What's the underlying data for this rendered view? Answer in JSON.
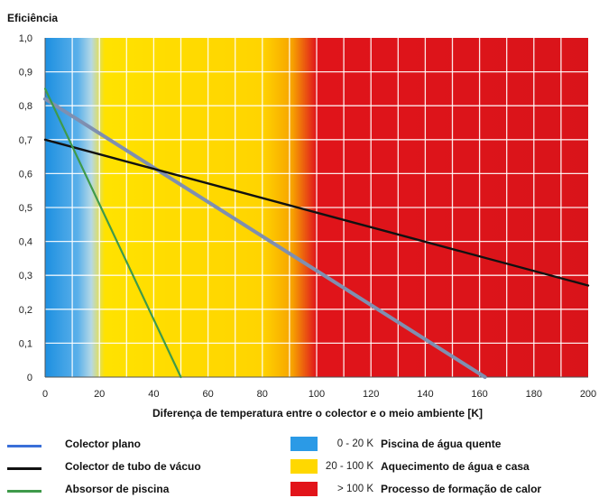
{
  "chart_data": {
    "type": "line",
    "title": "",
    "ylabel": "Eficiência",
    "xlabel": "Diferença de temperatura entre o colector e o meio ambiente [K]",
    "xlim": [
      0,
      200
    ],
    "ylim": [
      0,
      1.0
    ],
    "x_ticks": [
      "0",
      "20",
      "40",
      "60",
      "80",
      "100",
      "120",
      "140",
      "160",
      "180",
      "200"
    ],
    "y_ticks": [
      "0",
      "0,1",
      "0,2",
      "0,3",
      "0,4",
      "0,5",
      "0,6",
      "0,7",
      "0,8",
      "0,9",
      "1,0"
    ],
    "grid": true,
    "series": [
      {
        "name": "Colector plano",
        "color": "#7f8fb0",
        "x": [
          0,
          162
        ],
        "y": [
          0.82,
          0.0
        ]
      },
      {
        "name": "Colector de tubo de vácuo",
        "color": "#111111",
        "x": [
          0,
          200
        ],
        "y": [
          0.7,
          0.27
        ]
      },
      {
        "name": "Absorsor de piscina",
        "color": "#3f9a4a",
        "x": [
          0,
          50
        ],
        "y": [
          0.85,
          0.0
        ]
      }
    ],
    "zones": [
      {
        "range": "0 - 20 K",
        "label": "Piscina de água quente",
        "color": "#2b9ae6",
        "from": 0,
        "to": 20
      },
      {
        "range": "20 - 100 K",
        "label": "Aquecimento de água e casa",
        "color": "#ffd800",
        "from": 20,
        "to": 100
      },
      {
        "range": "> 100 K",
        "label": "Processo de formação de calor",
        "color": "#e2141a",
        "from": 100,
        "to": 200
      }
    ],
    "legend_lines": [
      {
        "label": "Colector plano",
        "color": "#3a6fd8"
      },
      {
        "label": "Colector de tubo de vácuo",
        "color": "#111111"
      },
      {
        "label": "Absorsor de piscina",
        "color": "#3f9a4a"
      }
    ]
  }
}
